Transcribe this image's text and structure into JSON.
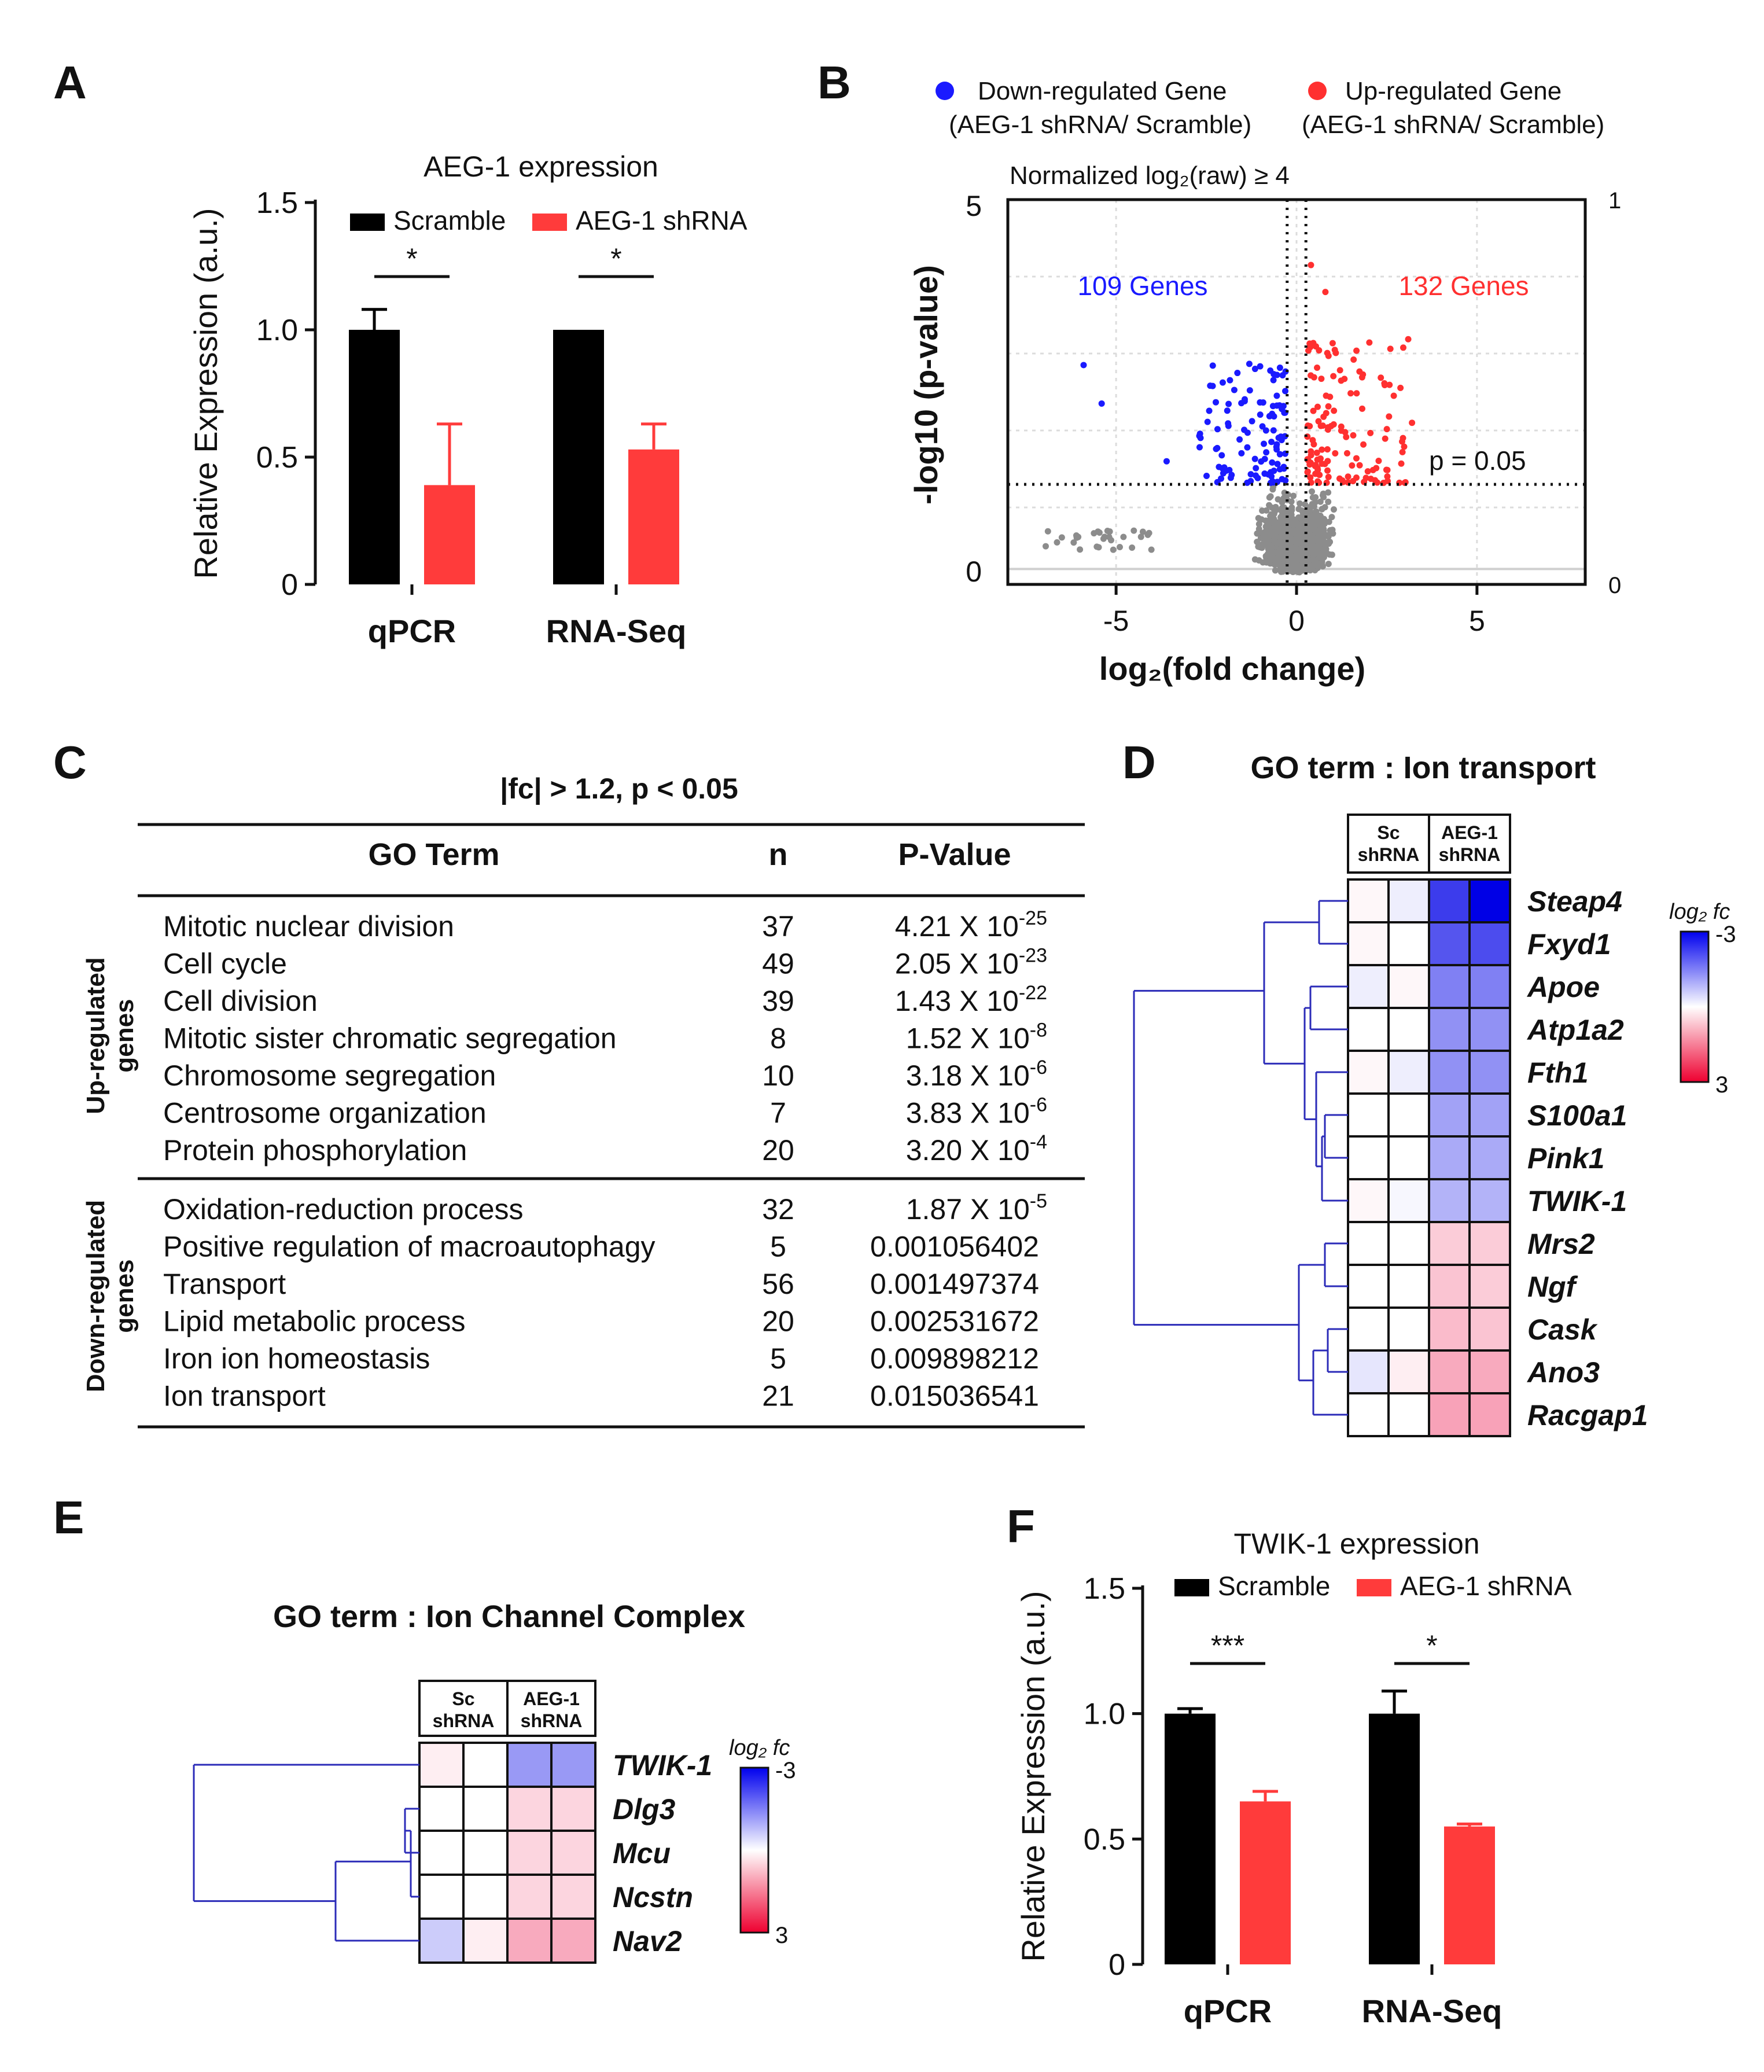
{
  "panels": {
    "A": "A",
    "B": "B",
    "C": "C",
    "D": "D",
    "E": "E",
    "F": "F"
  },
  "colors": {
    "scramble": "#000000",
    "shrna": "#ff3b3b",
    "down": "#1a1aff",
    "up": "#ff3030",
    "ns": "#8c8c8c",
    "dendro": "#2b2bb8"
  },
  "chart_data": [
    {
      "id": "A",
      "type": "bar",
      "title": "AEG-1 expression",
      "ylabel": "Relative Expression (a.u.)",
      "ylim": [
        0,
        1.5
      ],
      "yticks": [
        "0",
        "0.5",
        "1.0",
        "1.5"
      ],
      "categories": [
        "qPCR",
        "RNA-Seq"
      ],
      "series": [
        {
          "name": "Scramble",
          "values": [
            1.0,
            1.0
          ],
          "errors": [
            0.08,
            0.0
          ]
        },
        {
          "name": "AEG-1 shRNA",
          "values": [
            0.39,
            0.53
          ],
          "errors": [
            0.24,
            0.1
          ]
        }
      ],
      "significance": [
        "*",
        "*"
      ]
    },
    {
      "id": "B",
      "type": "scatter",
      "legend": {
        "down": [
          "Down-regulated  Gene",
          "(AEG-1 shRNA/  Scramble)"
        ],
        "up": [
          "Up-regulated  Gene",
          "(AEG-1 shRNA/  Scramble)"
        ]
      },
      "subtitle": "Normalized  log₂(raw) ≥ 4",
      "xlabel": "log₂(fold change)",
      "ylabel": "-log10 (p-value)",
      "xlim": [
        -8,
        8
      ],
      "ylim": [
        0,
        5
      ],
      "xticks": [
        "-5",
        "0",
        "5"
      ],
      "yticks_left": [
        "0",
        "5"
      ],
      "yticks_right": [
        "0",
        "1"
      ],
      "down_count": "109 Genes",
      "up_count": "132 Genes",
      "threshold_label": "p = 0.05",
      "p_threshold_y": 1.3,
      "fc_thresholds": [
        -0.26,
        0.26
      ]
    },
    {
      "id": "F",
      "type": "bar",
      "title": "TWIK-1 expression",
      "ylabel": "Relative Expression (a.u.)",
      "ylim": [
        0,
        1.5
      ],
      "yticks": [
        "0",
        "0.5",
        "1.0",
        "1.5"
      ],
      "categories": [
        "qPCR",
        "RNA-Seq"
      ],
      "series": [
        {
          "name": "Scramble",
          "values": [
            1.0,
            1.0
          ],
          "errors": [
            0.02,
            0.09
          ]
        },
        {
          "name": "AEG-1 shRNA",
          "values": [
            0.65,
            0.55
          ],
          "errors": [
            0.04,
            0.01
          ]
        }
      ],
      "significance": [
        "***",
        "*"
      ]
    }
  ],
  "table_c": {
    "title": "|fc| > 1.2, p < 0.05",
    "headers": [
      "GO Term",
      "n",
      "P-Value"
    ],
    "up_label": [
      "Up-regulated",
      "genes"
    ],
    "down_label": [
      "Down-regulated",
      "genes"
    ],
    "up_rows": [
      {
        "term": "Mitotic nuclear division",
        "n": "37",
        "p": "4.21 X 10",
        "exp": "-25"
      },
      {
        "term": "Cell cycle",
        "n": "49",
        "p": "2.05 X 10",
        "exp": "-23"
      },
      {
        "term": "Cell division",
        "n": "39",
        "p": "1.43 X 10",
        "exp": "-22"
      },
      {
        "term": "Mitotic sister chromatic segregation",
        "n": "8",
        "p": "1.52 X 10",
        "exp": "-8"
      },
      {
        "term": "Chromosome segregation",
        "n": "10",
        "p": "3.18 X 10",
        "exp": "-6"
      },
      {
        "term": "Centrosome organization",
        "n": "7",
        "p": "3.83 X 10",
        "exp": "-6"
      },
      {
        "term": "Protein phosphorylation",
        "n": "20",
        "p": "3.20 X 10",
        "exp": "-4"
      }
    ],
    "down_rows": [
      {
        "term": "Oxidation-reduction process",
        "n": "32",
        "p": "1.87 X 10",
        "exp": "-5"
      },
      {
        "term": "Positive regulation of macroautophagy",
        "n": "5",
        "p": "0.001056402",
        "exp": ""
      },
      {
        "term": "Transport",
        "n": "56",
        "p": "0.001497374",
        "exp": ""
      },
      {
        "term": "Lipid metabolic process",
        "n": "20",
        "p": "0.002531672",
        "exp": ""
      },
      {
        "term": "Iron ion homeostasis",
        "n": "5",
        "p": "0.009898212",
        "exp": ""
      },
      {
        "term": "Ion transport",
        "n": "21",
        "p": "0.015036541",
        "exp": ""
      }
    ]
  },
  "heatmap_d": {
    "title": "GO term : Ion transport",
    "col_groups": [
      [
        "Sc",
        "shRNA"
      ],
      [
        "AEG-1",
        "shRNA"
      ]
    ],
    "scale_label": "log₂ fc",
    "scale_min": "-3",
    "scale_max": "3",
    "genes": [
      "Steap4",
      "Fxyd1",
      "Apoe",
      "Atp1a2",
      "Fth1",
      "S100a1",
      "Pink1",
      "TWIK-1",
      "Mrs2",
      "Ngf",
      "Cask",
      "Ano3",
      "Racgap1"
    ],
    "values": [
      [
        0.1,
        -0.2,
        -2.3,
        -3.0
      ],
      [
        0.1,
        0.0,
        -2.0,
        -2.1
      ],
      [
        -0.2,
        0.1,
        -1.5,
        -1.5
      ],
      [
        0.0,
        0.0,
        -1.3,
        -1.3
      ],
      [
        0.1,
        -0.2,
        -1.3,
        -1.3
      ],
      [
        0.0,
        0.0,
        -1.1,
        -1.1
      ],
      [
        0.0,
        0.0,
        -1.0,
        -1.0
      ],
      [
        0.1,
        -0.1,
        -0.9,
        -0.9
      ],
      [
        0.0,
        0.0,
        0.6,
        0.6
      ],
      [
        0.0,
        0.0,
        0.7,
        0.6
      ],
      [
        0.0,
        0.0,
        0.8,
        0.7
      ],
      [
        -0.3,
        0.2,
        1.0,
        1.0
      ],
      [
        0.0,
        0.0,
        1.1,
        1.1
      ]
    ]
  },
  "heatmap_e": {
    "title": "GO term : Ion Channel Complex",
    "col_groups": [
      [
        "Sc",
        "shRNA"
      ],
      [
        "AEG-1",
        "shRNA"
      ]
    ],
    "scale_label": "log₂ fc",
    "scale_min": "-3",
    "scale_max": "3",
    "genes": [
      "TWIK-1",
      "Dlg3",
      "Mcu",
      "Ncstn",
      "Nav2"
    ],
    "values": [
      [
        0.2,
        0.0,
        -1.2,
        -1.2
      ],
      [
        0.0,
        0.0,
        0.5,
        0.5
      ],
      [
        0.0,
        0.0,
        0.5,
        0.5
      ],
      [
        0.0,
        0.0,
        0.5,
        0.5
      ],
      [
        -0.6,
        0.2,
        1.0,
        1.0
      ]
    ]
  }
}
